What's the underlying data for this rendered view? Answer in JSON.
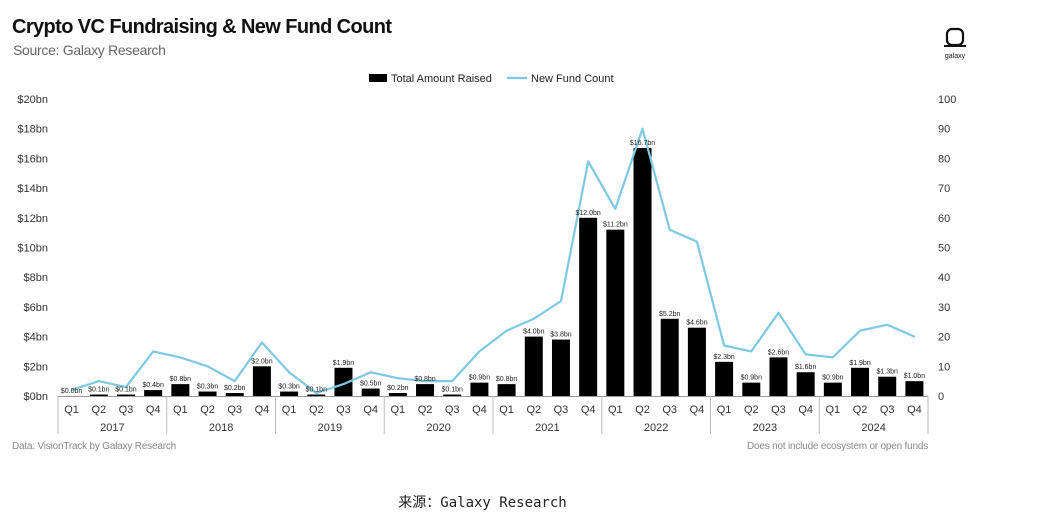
{
  "header": {
    "title": "Crypto VC Fundraising & New Fund Count",
    "subtitle": "Source: Galaxy Research",
    "logo_text": "galaxy"
  },
  "footer": {
    "left_note": "Data: VisionTrack by Galaxy Research",
    "right_note": "Does not include ecosystem or open funds",
    "caption": "来源：Galaxy  Research"
  },
  "colors": {
    "bar": "#000000",
    "line": "#7ec8e3"
  },
  "chart_data": {
    "type": "bar+line",
    "title": "Crypto VC Fundraising & New Fund Count",
    "legend": [
      "Total Amount Raised",
      "New Fund Count"
    ],
    "legend_position": "top-center",
    "quarters": [
      "Q1",
      "Q2",
      "Q3",
      "Q4",
      "Q1",
      "Q2",
      "Q3",
      "Q4",
      "Q1",
      "Q2",
      "Q3",
      "Q4",
      "Q1",
      "Q2",
      "Q3",
      "Q4",
      "Q1",
      "Q2",
      "Q3",
      "Q4",
      "Q1",
      "Q2",
      "Q3",
      "Q4",
      "Q1",
      "Q2",
      "Q3",
      "Q4",
      "Q1",
      "Q2",
      "Q3",
      "Q4"
    ],
    "years": [
      "2017",
      "2018",
      "2019",
      "2020",
      "2021",
      "2022",
      "2023",
      "2024"
    ],
    "amount_raised_bn": [
      0.0,
      0.1,
      0.1,
      0.4,
      0.8,
      0.3,
      0.2,
      2.0,
      0.3,
      0.1,
      1.9,
      0.5,
      0.2,
      0.8,
      0.1,
      0.9,
      0.8,
      4.0,
      3.8,
      12.0,
      11.2,
      16.7,
      5.2,
      4.6,
      2.3,
      0.9,
      2.6,
      1.6,
      0.9,
      1.9,
      1.3,
      1.0
    ],
    "amount_labels": [
      "$0.0bn",
      "$0.1bn",
      "$0.1bn",
      "$0.4bn",
      "$0.8bn",
      "$0.3bn",
      "$0.2bn",
      "$2.0bn",
      "$0.3bn",
      "$0.1bn",
      "$1.9bn",
      "$0.5bn",
      "$0.2bn",
      "$0.8bn",
      "$0.1bn",
      "$0.9bn",
      "$0.8bn",
      "$4.0bn",
      "$3.8bn",
      "$12.0bn",
      "$11.2bn",
      "$16.7bn",
      "$5.2bn",
      "$4.6bn",
      "$2.3bn",
      "$0.9bn",
      "$2.6bn",
      "$1.6bn",
      "$0.9bn",
      "$1.9bn",
      "$1.3bn",
      "$1.0bn"
    ],
    "new_fund_count": [
      2,
      5,
      3,
      15,
      13,
      10,
      5,
      18,
      8,
      1,
      4,
      8,
      6,
      5,
      5,
      15,
      22,
      26,
      32,
      79,
      63,
      90,
      56,
      52,
      17,
      15,
      28,
      14,
      13,
      22,
      24,
      20
    ],
    "y_left_ticks": [
      "$0bn",
      "$2bn",
      "$4bn",
      "$6bn",
      "$8bn",
      "$10bn",
      "$12bn",
      "$14bn",
      "$16bn",
      "$18bn",
      "$20bn"
    ],
    "y_right_ticks": [
      "0",
      "10",
      "20",
      "30",
      "40",
      "50",
      "60",
      "70",
      "80",
      "90",
      "100"
    ],
    "y_left_range": [
      0,
      20
    ],
    "y_right_range": [
      0,
      100
    ]
  }
}
